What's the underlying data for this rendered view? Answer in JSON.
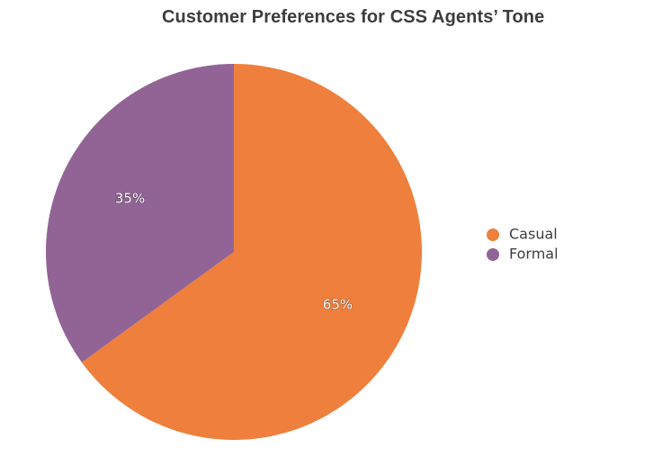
{
  "chart_data": {
    "type": "pie",
    "title": "Customer Preferences for CSS Agents’ Tone",
    "slices": [
      {
        "label": "Casual",
        "value": 65,
        "display": "65%",
        "color": "#ef7f3c"
      },
      {
        "label": "Formal",
        "value": 35,
        "display": "35%",
        "color": "#926496"
      }
    ],
    "legend_position": "right",
    "start_angle": "12 o'clock",
    "direction": "clockwise"
  }
}
